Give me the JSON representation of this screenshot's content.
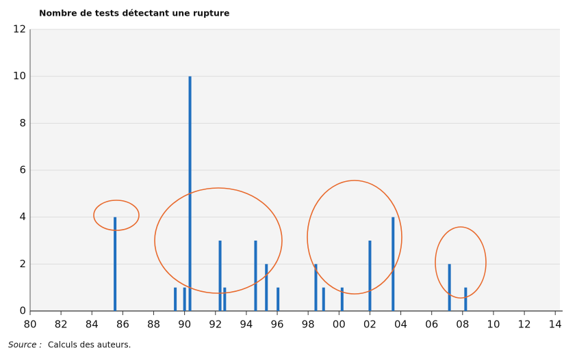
{
  "chart_data": {
    "type": "bar",
    "title": "Nombre de tests détectant une rupture",
    "source": "Source :",
    "note": "Calculs des auteurs.",
    "x": [
      1985.5,
      1989.4,
      1990.0,
      1990.35,
      1992.3,
      1992.6,
      1994.6,
      1995.3,
      1996.05,
      1998.5,
      1999.0,
      2000.2,
      2002.0,
      2003.5,
      2007.15,
      2008.2
    ],
    "values": [
      4,
      1,
      1,
      10,
      3,
      1,
      3,
      2,
      1,
      2,
      1,
      1,
      3,
      4,
      2,
      1
    ],
    "color": "#1f6fbf",
    "xlim": [
      1980,
      2014.3
    ],
    "xticks": [
      {
        "value": 1980,
        "label": "80"
      },
      {
        "value": 1982,
        "label": "82"
      },
      {
        "value": 1984,
        "label": "84"
      },
      {
        "value": 1986,
        "label": "86"
      },
      {
        "value": 1988,
        "label": "88"
      },
      {
        "value": 1990,
        "label": "90"
      },
      {
        "value": 1992,
        "label": "92"
      },
      {
        "value": 1994,
        "label": "94"
      },
      {
        "value": 1996,
        "label": "96"
      },
      {
        "value": 1998,
        "label": "98"
      },
      {
        "value": 2000,
        "label": "00"
      },
      {
        "value": 2002,
        "label": "02"
      },
      {
        "value": 2004,
        "label": "04"
      },
      {
        "value": 2006,
        "label": "06"
      },
      {
        "value": 2008,
        "label": "08"
      },
      {
        "value": 2010,
        "label": "10"
      },
      {
        "value": 2012,
        "label": "12"
      },
      {
        "value": 2014,
        "label": "14"
      }
    ],
    "ylim": [
      0,
      12
    ],
    "yticks": [
      0,
      2,
      4,
      6,
      8,
      10,
      12
    ],
    "grid": true
  }
}
